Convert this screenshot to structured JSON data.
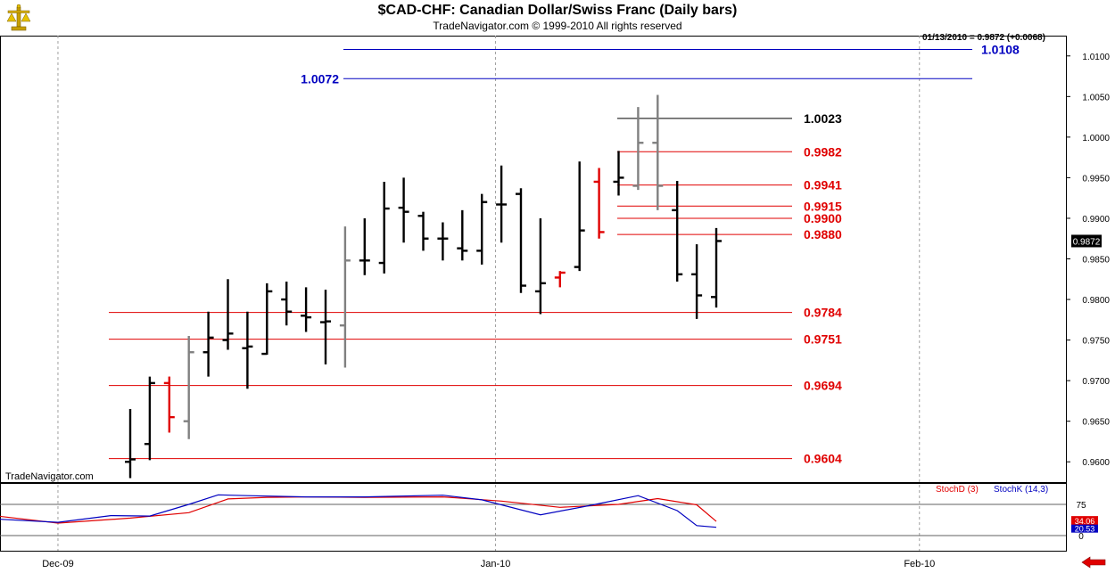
{
  "header": {
    "title": "$CAD-CHF:  Canadian Dollar/Swiss Franc  (Daily bars)",
    "subtitle": "TradeNavigator.com © 1999-2010 All rights reserved",
    "readout": "01/13/2010 = 0.9872 (+0.0068)"
  },
  "watermark": "TradeNavigator.com",
  "legend": {
    "stoch_d": "StochD (3)",
    "stoch_k": "StochK (14,3)"
  },
  "colors": {
    "up": "#000000",
    "down": "#e00000",
    "inside": "#808080",
    "blue": "#0000c0",
    "red": "#e00000"
  },
  "icons": {
    "logo": "gold-scales-icon",
    "back": "red-left-arrow-icon"
  },
  "chart_data": {
    "type": "bar",
    "subtype": "ohlc",
    "y_axis": {
      "min": 0.9575,
      "max": 1.0125,
      "ticks": [
        0.96,
        0.965,
        0.97,
        0.975,
        0.98,
        0.985,
        0.99,
        0.995,
        1.0,
        1.005,
        1.01
      ],
      "tick_labels": [
        "0.9600",
        "0.9650",
        "0.9700",
        "0.9750",
        "0.9800",
        "0.9850",
        "0.9900",
        "0.9950",
        "1.0000",
        "1.0050",
        "1.0100"
      ]
    },
    "x_axis_labels": [
      {
        "label": "Dec-09",
        "index": -3.7
      },
      {
        "label": "Jan-10",
        "index": 18.7
      },
      {
        "label": "Feb-10",
        "index": 40.4
      }
    ],
    "last_price_label": "0.9872",
    "bars": [
      {
        "o": 0.96,
        "h": 0.9665,
        "l": 0.958,
        "c": 0.9603,
        "t": "up"
      },
      {
        "o": 0.9622,
        "h": 0.9705,
        "l": 0.9602,
        "c": 0.9697,
        "t": "up"
      },
      {
        "o": 0.9697,
        "h": 0.9705,
        "l": 0.9636,
        "c": 0.9655,
        "t": "down"
      },
      {
        "o": 0.965,
        "h": 0.9755,
        "l": 0.9628,
        "c": 0.9735,
        "t": "inside"
      },
      {
        "o": 0.9735,
        "h": 0.9785,
        "l": 0.9705,
        "c": 0.9753,
        "t": "up"
      },
      {
        "o": 0.975,
        "h": 0.9825,
        "l": 0.9738,
        "c": 0.9758,
        "t": "up"
      },
      {
        "o": 0.974,
        "h": 0.9785,
        "l": 0.969,
        "c": 0.9742,
        "t": "up"
      },
      {
        "o": 0.9733,
        "h": 0.982,
        "l": 0.9732,
        "c": 0.981,
        "t": "up"
      },
      {
        "o": 0.98,
        "h": 0.9822,
        "l": 0.9768,
        "c": 0.9785,
        "t": "up"
      },
      {
        "o": 0.978,
        "h": 0.9815,
        "l": 0.976,
        "c": 0.9778,
        "t": "up"
      },
      {
        "o": 0.9772,
        "h": 0.9812,
        "l": 0.972,
        "c": 0.9773,
        "t": "up"
      },
      {
        "o": 0.9768,
        "h": 0.989,
        "l": 0.9716,
        "c": 0.9848,
        "t": "inside"
      },
      {
        "o": 0.9848,
        "h": 0.99,
        "l": 0.983,
        "c": 0.9848,
        "t": "up"
      },
      {
        "o": 0.9845,
        "h": 0.9945,
        "l": 0.9832,
        "c": 0.9912,
        "t": "up"
      },
      {
        "o": 0.9913,
        "h": 0.995,
        "l": 0.987,
        "c": 0.9908,
        "t": "up"
      },
      {
        "o": 0.9903,
        "h": 0.9908,
        "l": 0.986,
        "c": 0.9875,
        "t": "up"
      },
      {
        "o": 0.9875,
        "h": 0.9895,
        "l": 0.9848,
        "c": 0.9875,
        "t": "up"
      },
      {
        "o": 0.9863,
        "h": 0.991,
        "l": 0.9848,
        "c": 0.986,
        "t": "up"
      },
      {
        "o": 0.986,
        "h": 0.993,
        "l": 0.9843,
        "c": 0.992,
        "t": "up"
      },
      {
        "o": 0.9917,
        "h": 0.9965,
        "l": 0.987,
        "c": 0.9917,
        "t": "up"
      },
      {
        "o": 0.993,
        "h": 0.9937,
        "l": 0.9808,
        "c": 0.9817,
        "t": "up"
      },
      {
        "o": 0.981,
        "h": 0.99,
        "l": 0.9782,
        "c": 0.982,
        "t": "up"
      },
      {
        "o": 0.9827,
        "h": 0.9835,
        "l": 0.9815,
        "c": 0.9833,
        "t": "down"
      },
      {
        "o": 0.984,
        "h": 0.997,
        "l": 0.9835,
        "c": 0.9885,
        "t": "up"
      },
      {
        "o": 0.9945,
        "h": 0.9962,
        "l": 0.9875,
        "c": 0.9883,
        "t": "down"
      },
      {
        "o": 0.9945,
        "h": 0.9983,
        "l": 0.9928,
        "c": 0.995,
        "t": "up"
      },
      {
        "o": 0.994,
        "h": 1.0037,
        "l": 0.9935,
        "c": 0.9993,
        "t": "inside"
      },
      {
        "o": 0.9993,
        "h": 1.0052,
        "l": 0.991,
        "c": 0.994,
        "t": "inside"
      },
      {
        "o": 0.991,
        "h": 0.9946,
        "l": 0.9822,
        "c": 0.9831,
        "t": "up"
      },
      {
        "o": 0.9831,
        "h": 0.9868,
        "l": 0.9776,
        "c": 0.9805,
        "t": "up"
      },
      {
        "o": 0.9803,
        "h": 0.9888,
        "l": 0.979,
        "c": 0.9872,
        "t": "up"
      }
    ],
    "levels": [
      {
        "value": 1.0108,
        "label": "1.0108",
        "color": "blue"
      },
      {
        "value": 1.0072,
        "label": "1.0072",
        "color": "blue"
      },
      {
        "value": 1.0023,
        "label": "1.0023",
        "color": "black"
      },
      {
        "value": 0.9982,
        "label": "0.9982",
        "color": "red"
      },
      {
        "value": 0.9941,
        "label": "0.9941",
        "color": "red"
      },
      {
        "value": 0.9915,
        "label": "0.9915",
        "color": "red"
      },
      {
        "value": 0.99,
        "label": "0.9900",
        "color": "red"
      },
      {
        "value": 0.988,
        "label": "0.9880",
        "color": "red"
      },
      {
        "value": 0.9784,
        "label": "0.9784",
        "color": "red"
      },
      {
        "value": 0.9751,
        "label": "0.9751",
        "color": "red"
      },
      {
        "value": 0.9694,
        "label": "0.9694",
        "color": "red"
      },
      {
        "value": 0.9604,
        "label": "0.9604",
        "color": "red"
      }
    ],
    "stochastic": {
      "y_range": [
        0,
        100
      ],
      "ticks": [
        75,
        0
      ],
      "tick_labels": [
        "75",
        "0"
      ],
      "last_d_label": "34.06",
      "last_k_label": "20.53",
      "d_points": [
        [
          -7,
          48
        ],
        [
          -3.7,
          30
        ],
        [
          0,
          42
        ],
        [
          3,
          55
        ],
        [
          5,
          88
        ],
        [
          7,
          92
        ],
        [
          9,
          93
        ],
        [
          12,
          92
        ],
        [
          16,
          93
        ],
        [
          19,
          83
        ],
        [
          22,
          68
        ],
        [
          25,
          75
        ],
        [
          27,
          89
        ],
        [
          29,
          74
        ],
        [
          30,
          34
        ]
      ],
      "k_points": [
        [
          -7,
          40
        ],
        [
          -3.7,
          32
        ],
        [
          -1,
          48
        ],
        [
          1,
          47
        ],
        [
          3,
          75
        ],
        [
          4.5,
          98
        ],
        [
          6,
          96
        ],
        [
          9,
          93
        ],
        [
          12,
          93
        ],
        [
          16,
          97
        ],
        [
          18,
          86
        ],
        [
          21,
          50
        ],
        [
          23.5,
          72
        ],
        [
          26,
          96
        ],
        [
          28,
          60
        ],
        [
          29,
          24
        ],
        [
          30,
          20
        ]
      ]
    }
  }
}
